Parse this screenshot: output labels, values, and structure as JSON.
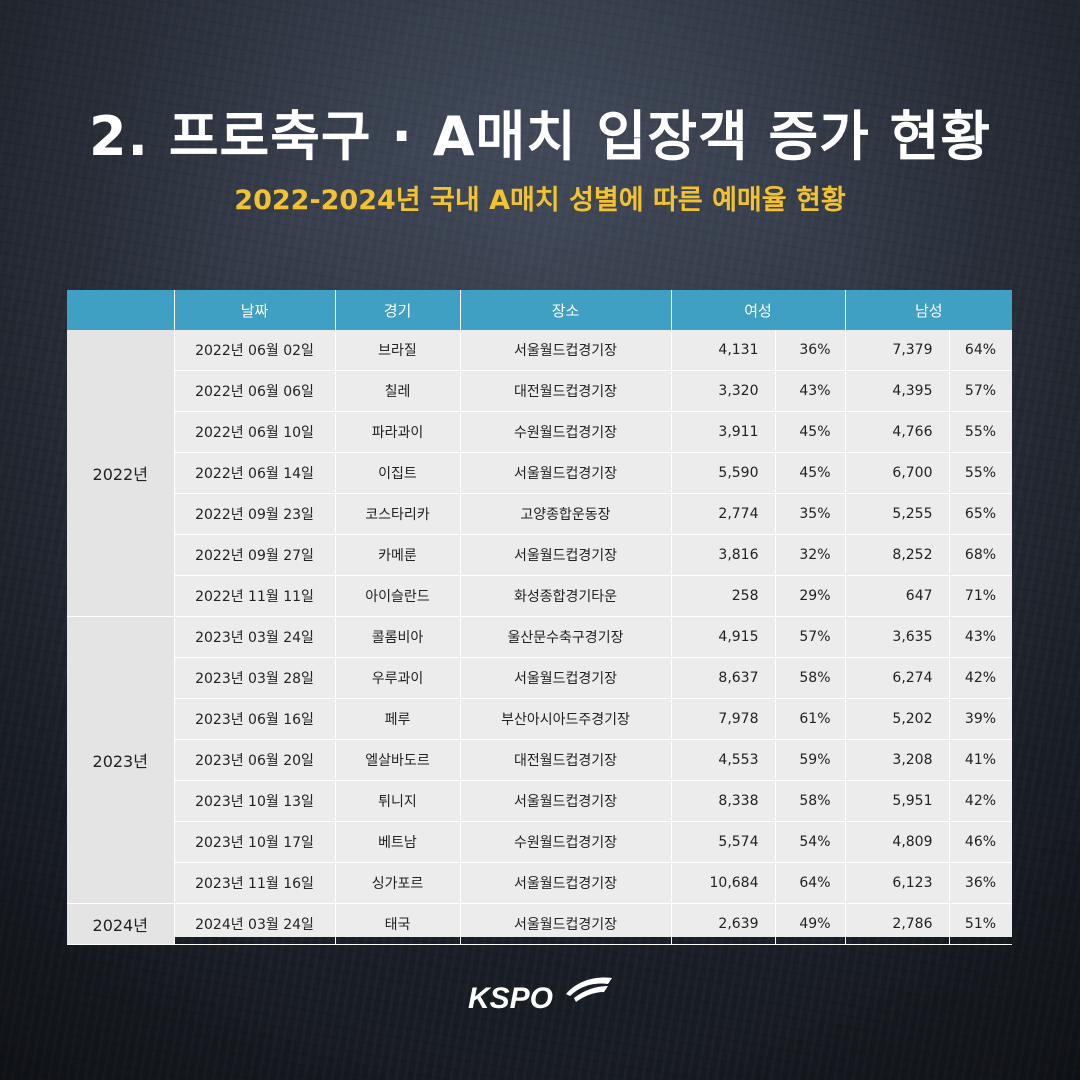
{
  "header": {
    "title": "2. 프로축구 · A매치 입장객 증가 현황",
    "subtitle": "2022-2024년 국내 A매치 성별에 따른 예매율 현황"
  },
  "table": {
    "headers": {
      "date": "날짜",
      "match": "경기",
      "venue": "장소",
      "female": "여성",
      "male": "남성"
    },
    "groups": [
      {
        "year": "2022년",
        "rows": [
          {
            "date": "2022년 06월 02일",
            "match": "브라질",
            "venue": "서울월드컵경기장",
            "female": "4,131",
            "female_pct": "36%",
            "male": "7,379",
            "male_pct": "64%"
          },
          {
            "date": "2022년 06월 06일",
            "match": "칠레",
            "venue": "대전월드컵경기장",
            "female": "3,320",
            "female_pct": "43%",
            "male": "4,395",
            "male_pct": "57%"
          },
          {
            "date": "2022년 06월 10일",
            "match": "파라과이",
            "venue": "수원월드컵경기장",
            "female": "3,911",
            "female_pct": "45%",
            "male": "4,766",
            "male_pct": "55%"
          },
          {
            "date": "2022년 06월 14일",
            "match": "이집트",
            "venue": "서울월드컵경기장",
            "female": "5,590",
            "female_pct": "45%",
            "male": "6,700",
            "male_pct": "55%"
          },
          {
            "date": "2022년 09월 23일",
            "match": "코스타리카",
            "venue": "고양종합운동장",
            "female": "2,774",
            "female_pct": "35%",
            "male": "5,255",
            "male_pct": "65%"
          },
          {
            "date": "2022년 09월 27일",
            "match": "카메룬",
            "venue": "서울월드컵경기장",
            "female": "3,816",
            "female_pct": "32%",
            "male": "8,252",
            "male_pct": "68%"
          },
          {
            "date": "2022년 11월 11일",
            "match": "아이슬란드",
            "venue": "화성종합경기타운",
            "female": "258",
            "female_pct": "29%",
            "male": "647",
            "male_pct": "71%"
          }
        ]
      },
      {
        "year": "2023년",
        "rows": [
          {
            "date": "2023년 03월 24일",
            "match": "콜롬비아",
            "venue": "울산문수축구경기장",
            "female": "4,915",
            "female_pct": "57%",
            "male": "3,635",
            "male_pct": "43%"
          },
          {
            "date": "2023년 03월 28일",
            "match": "우루과이",
            "venue": "서울월드컵경기장",
            "female": "8,637",
            "female_pct": "58%",
            "male": "6,274",
            "male_pct": "42%"
          },
          {
            "date": "2023년 06월 16일",
            "match": "페루",
            "venue": "부산아시아드주경기장",
            "female": "7,978",
            "female_pct": "61%",
            "male": "5,202",
            "male_pct": "39%"
          },
          {
            "date": "2023년 06월 20일",
            "match": "엘살바도르",
            "venue": "대전월드컵경기장",
            "female": "4,553",
            "female_pct": "59%",
            "male": "3,208",
            "male_pct": "41%"
          },
          {
            "date": "2023년 10월 13일",
            "match": "튀니지",
            "venue": "서울월드컵경기장",
            "female": "8,338",
            "female_pct": "58%",
            "male": "5,951",
            "male_pct": "42%"
          },
          {
            "date": "2023년 10월 17일",
            "match": "베트남",
            "venue": "수원월드컵경기장",
            "female": "5,574",
            "female_pct": "54%",
            "male": "4,809",
            "male_pct": "46%"
          },
          {
            "date": "2023년 11월 16일",
            "match": "싱가포르",
            "venue": "서울월드컵경기장",
            "female": "10,684",
            "female_pct": "64%",
            "male": "6,123",
            "male_pct": "36%"
          }
        ]
      },
      {
        "year": "2024년",
        "rows": [
          {
            "date": "2024년 03월 24일",
            "match": "태국",
            "venue": "서울월드컵경기장",
            "female": "2,639",
            "female_pct": "49%",
            "male": "2,786",
            "male_pct": "51%"
          }
        ]
      }
    ]
  },
  "logo": {
    "text": "KSPO",
    "icon": "kspo-swoosh-icon"
  },
  "colors": {
    "header_bg": "#3fa0c4",
    "subtitle": "#f2c230",
    "table_bg": "#ececec"
  }
}
